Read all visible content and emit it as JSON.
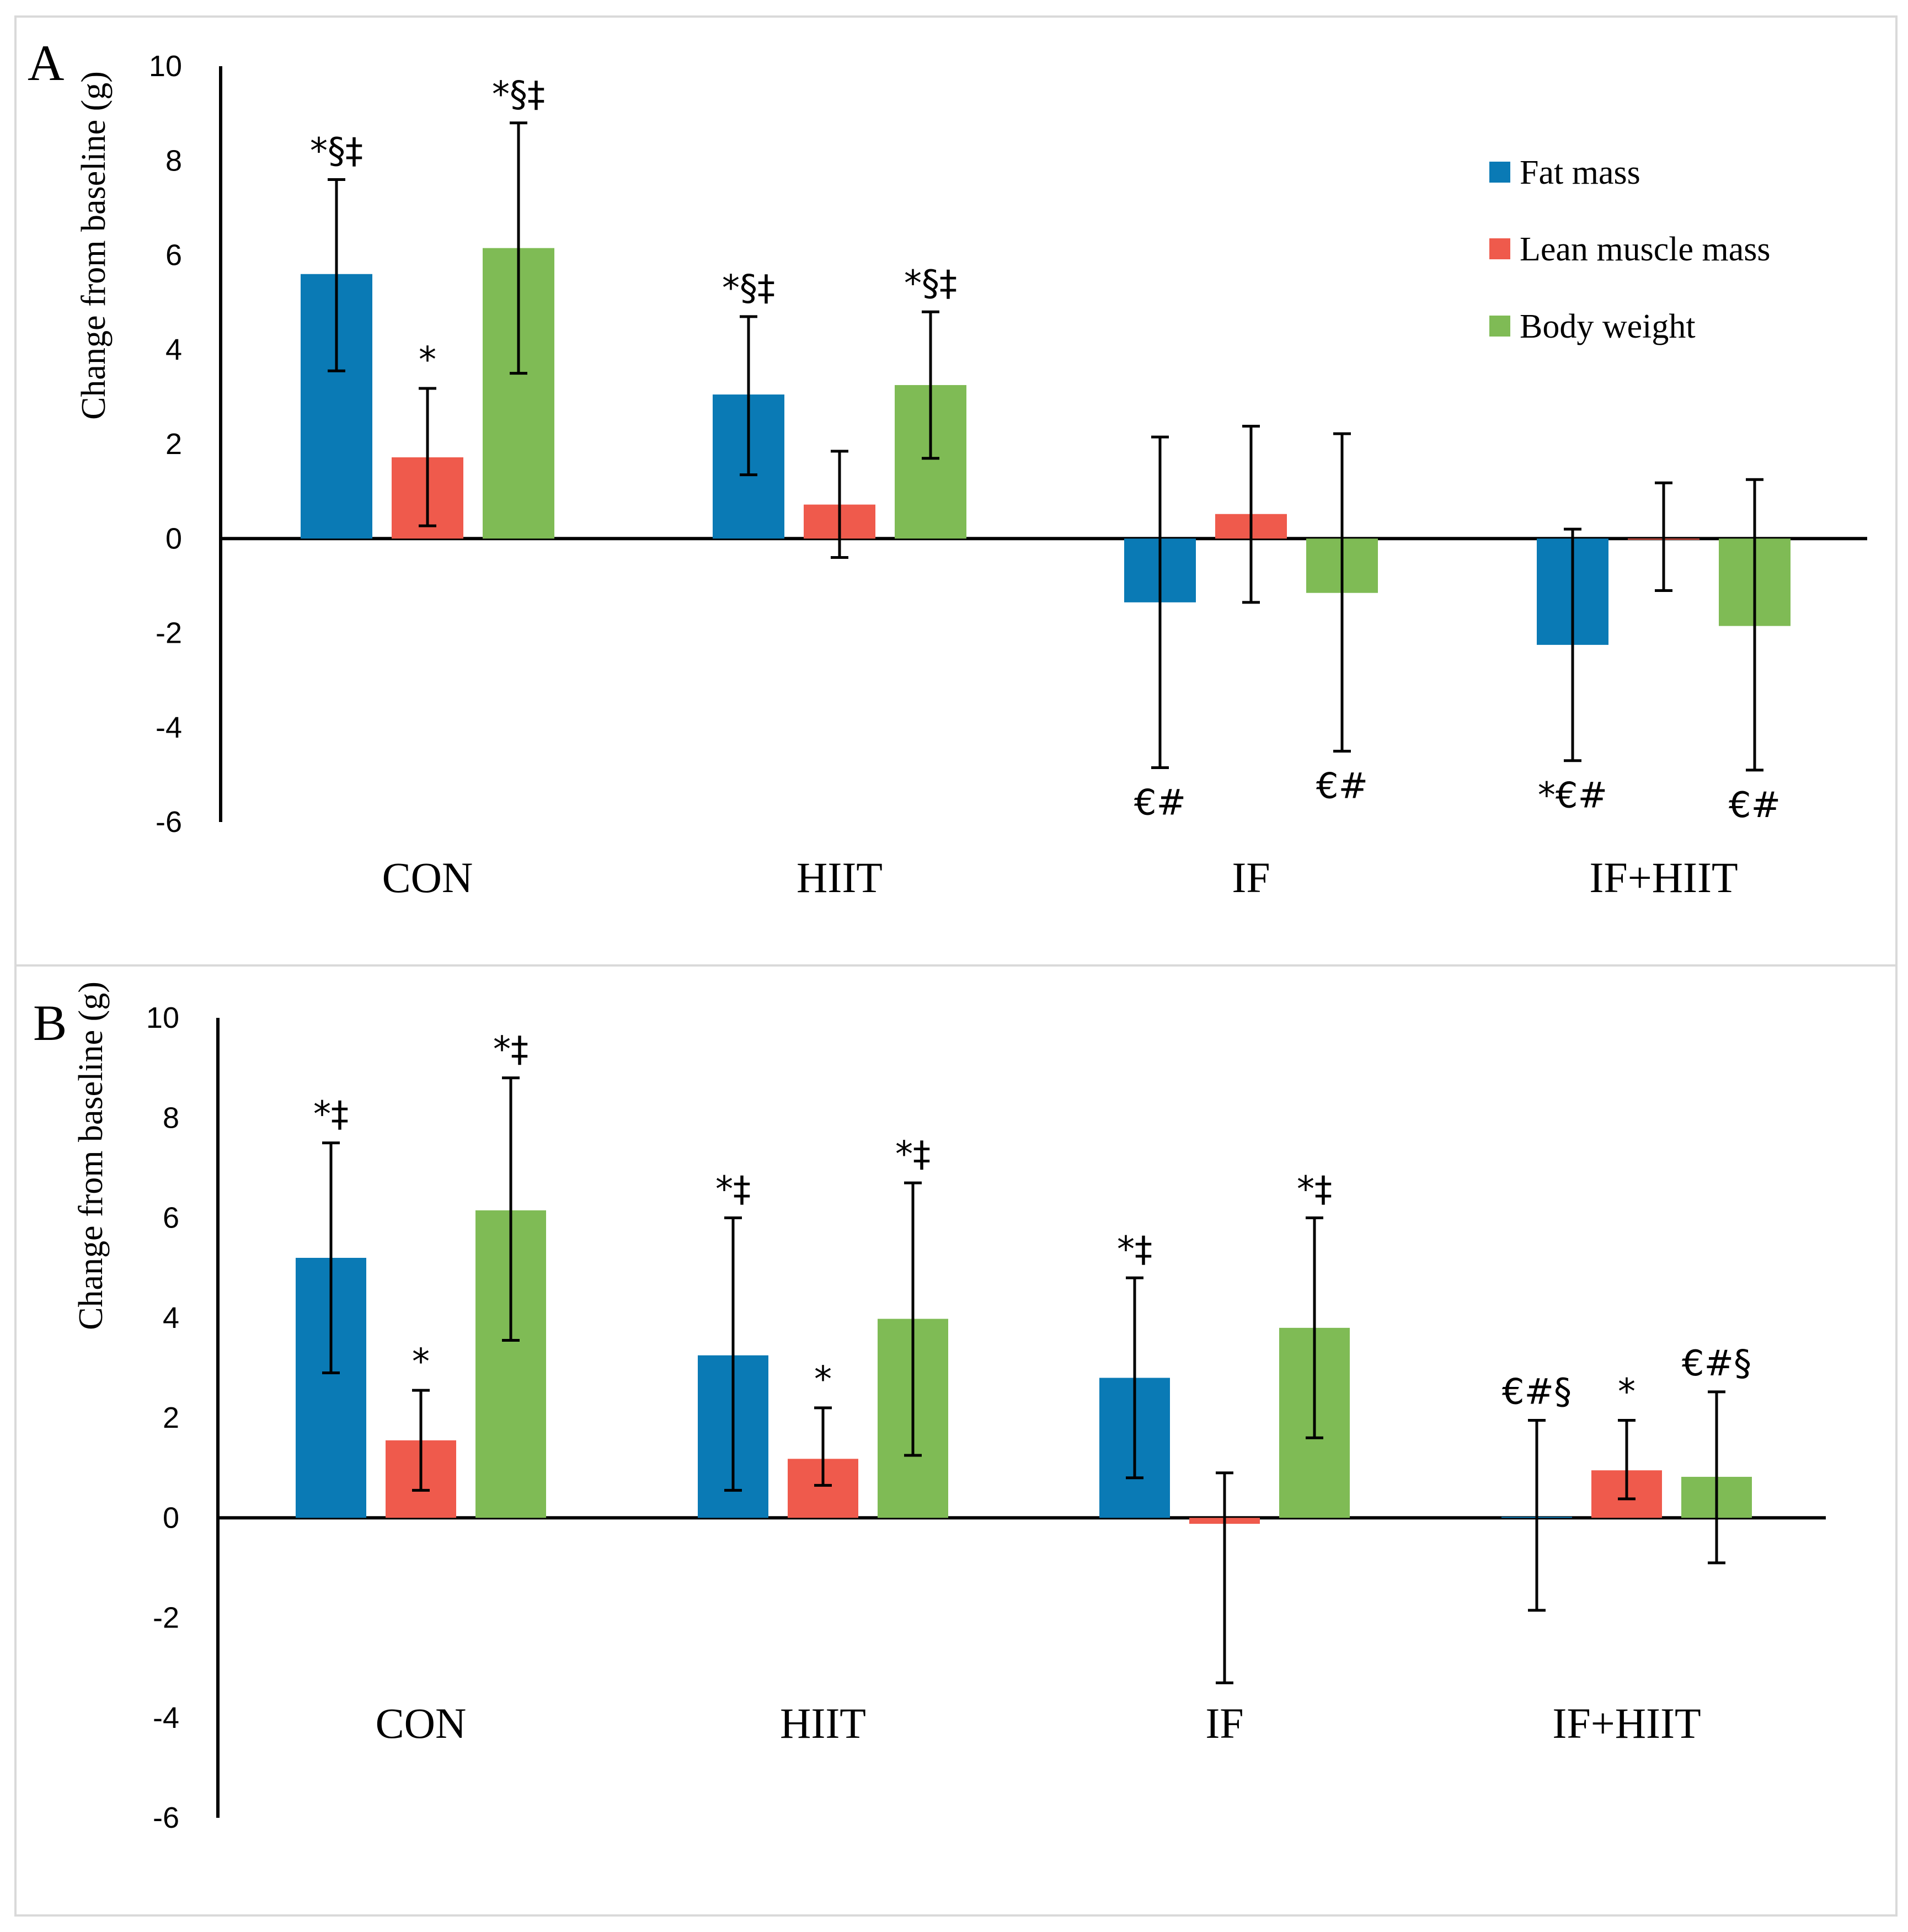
{
  "colors": {
    "fat_mass": "#0a7ab5",
    "lean_muscle_mass": "#ef5a4c",
    "body_weight": "#7fbb55"
  },
  "legend": [
    "Fat mass",
    "Lean muscle mass",
    "Body weight"
  ],
  "chart_data": [
    {
      "panel": "A",
      "type": "bar",
      "ylabel": "Change from baseline (g)",
      "ylim": [
        -6,
        10
      ],
      "yticks": [
        "10",
        "8",
        "6",
        "4",
        "2",
        "0",
        "-2",
        "-4",
        "-6"
      ],
      "categories": [
        "CON",
        "HIIT",
        "IF",
        "IF+HIIT"
      ],
      "series": [
        {
          "name": "Fat mass",
          "values": [
            5.6,
            3.05,
            -1.35,
            -2.25
          ],
          "err_low": [
            3.55,
            1.35,
            -4.85,
            -4.7
          ],
          "err_high": [
            7.6,
            4.7,
            2.15,
            0.2
          ],
          "annotations": [
            "*§‡",
            "*§‡",
            "€#",
            "*€#"
          ],
          "annotation_pos": [
            "above",
            "above",
            "below",
            "below"
          ]
        },
        {
          "name": "Lean muscle mass",
          "values": [
            1.72,
            0.72,
            0.52,
            0.0
          ],
          "err_low": [
            0.27,
            -0.4,
            -1.35,
            -1.1
          ],
          "err_high": [
            3.18,
            1.85,
            2.38,
            1.18
          ],
          "annotations": [
            "*",
            "",
            "",
            ""
          ],
          "annotation_pos": [
            "above",
            "above",
            "above",
            "above"
          ]
        },
        {
          "name": "Body weight",
          "values": [
            6.15,
            3.25,
            -1.15,
            -1.85
          ],
          "err_low": [
            3.5,
            1.7,
            -4.5,
            -4.9
          ],
          "err_high": [
            8.8,
            4.8,
            2.22,
            1.25
          ],
          "annotations": [
            "*§‡",
            "*§‡",
            "€#",
            "€#"
          ],
          "annotation_pos": [
            "above",
            "above",
            "below",
            "below"
          ]
        }
      ]
    },
    {
      "panel": "B",
      "type": "bar",
      "ylabel": "Change from baseline (g)",
      "ylim": [
        -6,
        10
      ],
      "yticks": [
        "10",
        "8",
        "6",
        "4",
        "2",
        "0",
        "-2",
        "-4",
        "-6"
      ],
      "categories": [
        "CON",
        "HIIT",
        "IF",
        "IF+HIIT"
      ],
      "series": [
        {
          "name": "Fat mass",
          "values": [
            5.2,
            3.25,
            2.8,
            0.02
          ],
          "err_low": [
            2.9,
            0.55,
            0.8,
            -1.85
          ],
          "err_high": [
            7.5,
            6.0,
            4.8,
            1.95
          ],
          "annotations": [
            "*‡",
            "*‡",
            "*‡",
            "€#§"
          ],
          "annotation_pos": [
            "above",
            "above",
            "above",
            "above"
          ]
        },
        {
          "name": "Lean muscle mass",
          "values": [
            1.55,
            1.18,
            -0.12,
            0.95
          ],
          "err_low": [
            0.55,
            0.65,
            -3.3,
            0.38
          ],
          "err_high": [
            2.55,
            2.2,
            0.9,
            1.95
          ],
          "annotations": [
            "*",
            "*",
            "",
            "*"
          ],
          "annotation_pos": [
            "above",
            "above",
            "above",
            "above"
          ]
        },
        {
          "name": "Body weight",
          "values": [
            6.15,
            3.98,
            3.8,
            0.82
          ],
          "err_low": [
            3.55,
            1.25,
            1.6,
            -0.9
          ],
          "err_high": [
            8.8,
            6.7,
            6.0,
            2.52
          ],
          "annotations": [
            "*‡",
            "*‡",
            "*‡",
            "€#§"
          ],
          "annotation_pos": [
            "above",
            "above",
            "above",
            "above"
          ]
        }
      ]
    }
  ]
}
